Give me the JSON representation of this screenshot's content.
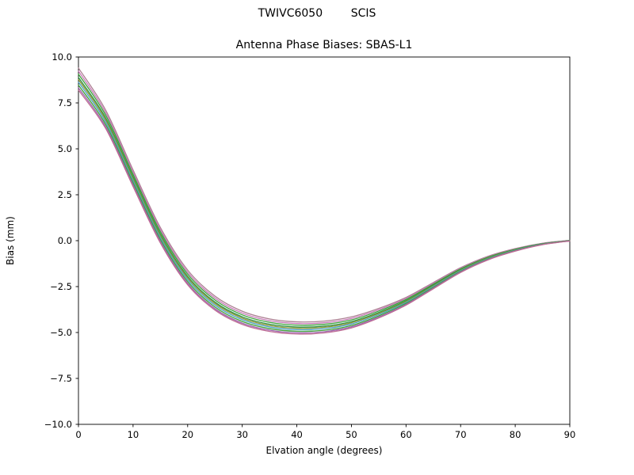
{
  "chart_data": {
    "type": "line",
    "title": "TWIVC6050        SCIS",
    "subtitle": "Antenna Phase Biases: SBAS-L1",
    "xlabel": "Elvation angle (degrees)",
    "ylabel": "Bias (mm)",
    "xlim": [
      0,
      90
    ],
    "ylim": [
      -10,
      10
    ],
    "grid": false,
    "legend": "none",
    "xtick_values": [
      0,
      10,
      20,
      30,
      40,
      50,
      60,
      70,
      80,
      90
    ],
    "xtick_labels": [
      "0",
      "10",
      "20",
      "30",
      "40",
      "50",
      "60",
      "70",
      "80",
      "90"
    ],
    "ytick_values": [
      10,
      7.5,
      5,
      2.5,
      0,
      -2.5,
      -5,
      -7.5,
      -10
    ],
    "ytick_labels": [
      "10.0",
      "7.5",
      "5.0",
      "2.5",
      "0.0",
      "−2.5",
      "−5.0",
      "−7.5",
      "−10.0"
    ],
    "x": [
      0,
      5,
      10,
      15,
      20,
      25,
      30,
      35,
      40,
      45,
      50,
      55,
      60,
      65,
      70,
      75,
      80,
      85,
      90
    ],
    "center_bias_mm": [
      8.8,
      6.6,
      3.4,
      0.3,
      -2.0,
      -3.4,
      -4.2,
      -4.6,
      -4.75,
      -4.7,
      -4.45,
      -3.95,
      -3.3,
      -2.45,
      -1.6,
      -0.95,
      -0.5,
      -0.18,
      0.0
    ],
    "spread_half_width_mm": [
      0.6,
      0.5,
      0.45,
      0.42,
      0.4,
      0.38,
      0.36,
      0.34,
      0.33,
      0.32,
      0.3,
      0.26,
      0.21,
      0.17,
      0.13,
      0.1,
      0.07,
      0.04,
      0.02
    ],
    "series": [
      {
        "name": "curve-mauve",
        "color": "#ad7f93",
        "offset": 1.0
      },
      {
        "name": "curve-orchid",
        "color": "#c878b8",
        "offset": 0.72
      },
      {
        "name": "curve-green-a",
        "color": "#39a339",
        "offset": 0.45
      },
      {
        "name": "curve-green-b",
        "color": "#2e9145",
        "offset": 0.15
      },
      {
        "name": "curve-olive",
        "color": "#8f9433",
        "offset": -0.05
      },
      {
        "name": "curve-teal",
        "color": "#4aa0c0",
        "offset": -0.28
      },
      {
        "name": "curve-green-c",
        "color": "#3fa03a",
        "offset": -0.55
      },
      {
        "name": "curve-purple",
        "color": "#9e64ad",
        "offset": -0.8
      },
      {
        "name": "curve-rose",
        "color": "#bd6b93",
        "offset": -1.0
      }
    ],
    "line_width": 1.3,
    "axes_color": "#000000",
    "background_color": "#ffffff"
  }
}
